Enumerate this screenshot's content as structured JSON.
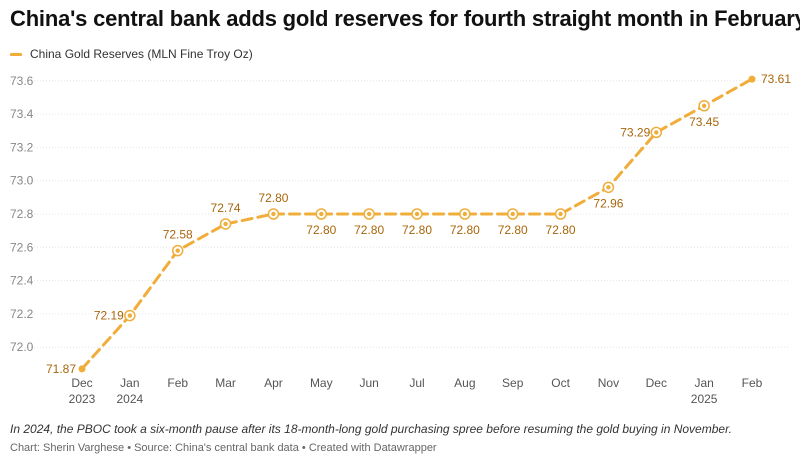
{
  "title": "China's central bank adds gold reserves for fourth straight month in February",
  "footnote": "In 2024, the PBOC took a six-month pause after its 18-month-long gold purchasing spree before resuming the gold buying in November.",
  "credits": "Chart: Sherin Varghese • Source: China's central bank data • Created with Datawrapper",
  "colors": {
    "line": "#f0ad3a",
    "label": "#a8660c",
    "axis_text": "#888888",
    "grid": "#e5e5e5"
  },
  "chart_data": {
    "type": "line",
    "title": "China's central bank adds gold reserves for fourth straight month in February",
    "xlabel": "",
    "ylabel": "",
    "x": [
      "Dec 2023",
      "Jan 2024",
      "Feb",
      "Mar",
      "Apr",
      "May",
      "Jun",
      "Jul",
      "Aug",
      "Sep",
      "Oct",
      "Nov",
      "Dec",
      "Jan 2025",
      "Feb"
    ],
    "x_tick_labels": [
      [
        "Dec",
        "2023"
      ],
      [
        "Jan",
        "2024"
      ],
      [
        "Feb"
      ],
      [
        "Mar"
      ],
      [
        "Apr"
      ],
      [
        "May"
      ],
      [
        "Jun"
      ],
      [
        "Jul"
      ],
      [
        "Aug"
      ],
      [
        "Sep"
      ],
      [
        "Oct"
      ],
      [
        "Nov"
      ],
      [
        "Dec"
      ],
      [
        "Jan",
        "2025"
      ],
      [
        "Feb"
      ]
    ],
    "series": [
      {
        "name": "China Gold Reserves (MLN Fine Troy Oz)",
        "values": [
          71.87,
          72.19,
          72.58,
          72.74,
          72.8,
          72.8,
          72.8,
          72.8,
          72.8,
          72.8,
          72.8,
          72.96,
          73.29,
          73.45,
          73.61
        ],
        "labels": [
          "71.87",
          "72.19",
          "72.58",
          "72.74",
          "72.80",
          "72.80",
          "72.80",
          "72.80",
          "72.80",
          "72.80",
          "72.80",
          "72.96",
          "73.29",
          "73.45",
          "73.61"
        ],
        "label_positions": [
          "left",
          "left",
          "above",
          "above",
          "above",
          "below",
          "below",
          "below",
          "below",
          "below",
          "below",
          "below",
          "left",
          "below",
          "right"
        ]
      }
    ],
    "y_ticks": [
      "72.0",
      "72.2",
      "72.4",
      "72.6",
      "72.8",
      "73.0",
      "73.2",
      "73.4",
      "73.6"
    ],
    "ylim": [
      71.87,
      73.66
    ],
    "grid": true,
    "line_style": "dashed",
    "legend_position": "top-left"
  }
}
